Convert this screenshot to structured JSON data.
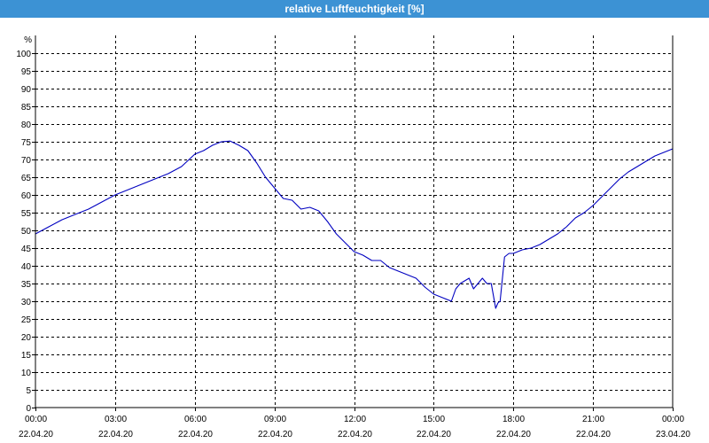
{
  "window": {
    "title": "relative Luftfeuchtigkeit [%]"
  },
  "chart_data": {
    "type": "line",
    "title": "relative Luftfeuchtigkeit [%]",
    "ylabel": "%",
    "xlabel": "",
    "ylim": [
      0,
      105
    ],
    "xlim": [
      "22.04.20 00:00",
      "23.04.20 00:00"
    ],
    "grid": true,
    "y_ticks": [
      "0",
      "5",
      "10",
      "15",
      "20",
      "25",
      "30",
      "35",
      "40",
      "45",
      "50",
      "55",
      "60",
      "65",
      "70",
      "75",
      "80",
      "85",
      "90",
      "95",
      "100"
    ],
    "x_ticks": [
      {
        "time": "00:00",
        "date": "22.04.20"
      },
      {
        "time": "03:00",
        "date": "22.04.20"
      },
      {
        "time": "06:00",
        "date": "22.04.20"
      },
      {
        "time": "09:00",
        "date": "22.04.20"
      },
      {
        "time": "12:00",
        "date": "22.04.20"
      },
      {
        "time": "15:00",
        "date": "22.04.20"
      },
      {
        "time": "18:00",
        "date": "22.04.20"
      },
      {
        "time": "21:00",
        "date": "22.04.20"
      },
      {
        "time": "00:00",
        "date": "23.04.20"
      }
    ],
    "series": [
      {
        "color": "#0000c0",
        "x": [
          "00:00",
          "00:30",
          "01:00",
          "01:30",
          "02:00",
          "02:30",
          "03:00",
          "03:30",
          "04:00",
          "04:30",
          "05:00",
          "05:30",
          "06:00",
          "06:20",
          "06:40",
          "07:00",
          "07:20",
          "07:40",
          "08:00",
          "08:20",
          "08:40",
          "09:00",
          "09:20",
          "09:40",
          "10:00",
          "10:20",
          "10:40",
          "11:00",
          "11:20",
          "11:40",
          "12:00",
          "12:20",
          "12:40",
          "13:00",
          "13:20",
          "13:40",
          "14:00",
          "14:20",
          "14:40",
          "15:00",
          "15:20",
          "15:40",
          "15:50",
          "16:00",
          "16:20",
          "16:30",
          "16:40",
          "16:50",
          "17:00",
          "17:10",
          "17:20",
          "17:25",
          "17:30",
          "17:40",
          "17:50",
          "18:00",
          "18:20",
          "18:40",
          "19:00",
          "19:20",
          "19:40",
          "20:00",
          "20:20",
          "20:40",
          "21:00",
          "21:20",
          "21:40",
          "22:00",
          "22:20",
          "22:40",
          "23:00",
          "23:20",
          "23:40",
          "24:00"
        ],
        "y": [
          49,
          51,
          53,
          54.5,
          56,
          58,
          60,
          61.5,
          63,
          64.5,
          66,
          68,
          71.5,
          72.5,
          74,
          75,
          75.2,
          74,
          72.5,
          69,
          65,
          62,
          59,
          58.5,
          56,
          56.5,
          55.5,
          52.5,
          49,
          46.5,
          44,
          43,
          41.5,
          41.5,
          39.5,
          38.5,
          37.5,
          36.5,
          34,
          32,
          31,
          30,
          33.5,
          35,
          36.5,
          33.5,
          35,
          36.5,
          35,
          35,
          28,
          29.5,
          30,
          42.5,
          43.5,
          43.5,
          44.5,
          45,
          46,
          47.5,
          49,
          51,
          53.5,
          55,
          57,
          59.5,
          62,
          64.5,
          66.5,
          68,
          69.5,
          71,
          72,
          73
        ]
      }
    ]
  }
}
